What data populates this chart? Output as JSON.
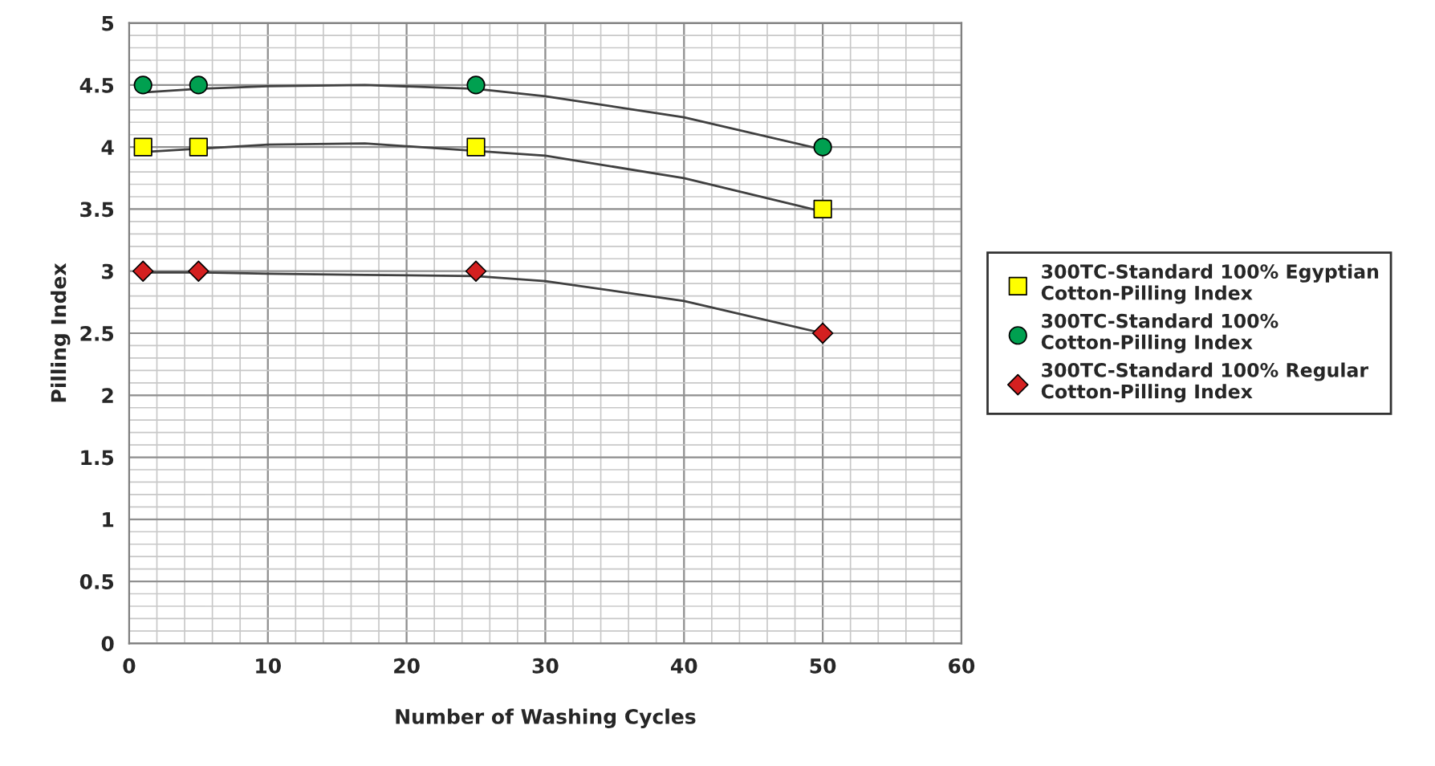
{
  "chart_data": {
    "type": "scatter",
    "xlabel": "Number of Washing Cycles",
    "ylabel": "Pilling Index",
    "xlim": [
      0,
      60
    ],
    "xticks": [
      0,
      10,
      20,
      30,
      40,
      50,
      60
    ],
    "ylim": [
      0,
      5
    ],
    "yticks": [
      0,
      0.5,
      1,
      1.5,
      2,
      2.5,
      3,
      3.5,
      4,
      4.5,
      5
    ],
    "grid": true,
    "legend": "right",
    "series": [
      {
        "name": "300TC-Standard 100% Egyptian Cotton-Pilling Index",
        "color": "#ffff00",
        "marker": "square",
        "x": [
          1,
          5,
          25,
          50
        ],
        "values": [
          4,
          4,
          4,
          3.5
        ]
      },
      {
        "name": "300TC-Standard 100% Cotton-Pilling Index",
        "color": "#00a050",
        "marker": "circle",
        "x": [
          1,
          5,
          25,
          50
        ],
        "values": [
          4.5,
          4.5,
          4.5,
          4
        ]
      },
      {
        "name": "300TC-Standard 100% Regular Cotton-Pilling Index",
        "color": "#d42020",
        "marker": "diamond",
        "x": [
          1,
          5,
          25,
          50
        ],
        "values": [
          3,
          3,
          3,
          2.5
        ]
      },
      {
        "type": "line",
        "color": "#404040",
        "x": [
          1,
          10,
          17,
          30,
          40,
          50
        ],
        "values": [
          3.96,
          4.02,
          4.03,
          3.93,
          3.75,
          3.48
        ]
      },
      {
        "type": "line",
        "color": "#404040",
        "x": [
          1,
          5,
          10,
          17,
          25,
          30,
          40,
          50
        ],
        "values": [
          4.44,
          4.47,
          4.49,
          4.5,
          4.47,
          4.41,
          4.24,
          3.98
        ]
      },
      {
        "type": "line",
        "color": "#404040",
        "x": [
          1,
          5,
          10,
          17,
          25,
          30,
          40,
          50
        ],
        "values": [
          2.99,
          2.99,
          2.98,
          2.97,
          2.96,
          2.92,
          2.76,
          2.5
        ]
      }
    ]
  }
}
